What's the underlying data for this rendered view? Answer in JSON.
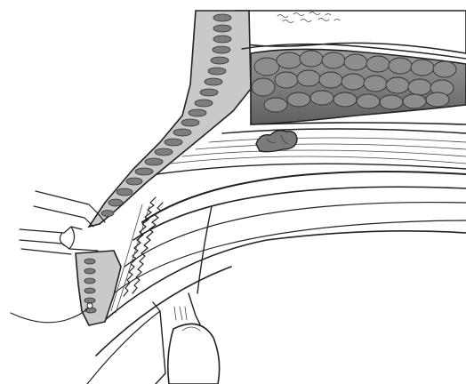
{
  "figure": {
    "kind": "anatomical line illustration",
    "palette": {
      "background": "#ffffff",
      "ink": "#222222",
      "tissue": "#c9c9c9",
      "dark_tissue": "#7a7a7a"
    }
  }
}
